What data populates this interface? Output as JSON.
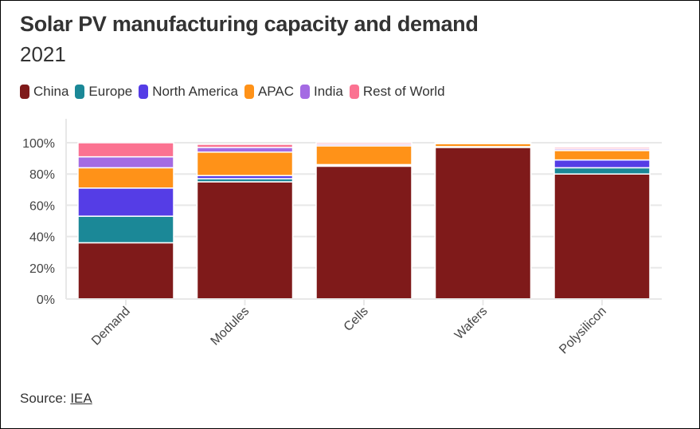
{
  "header": {
    "title": "Solar PV manufacturing capacity and demand",
    "subtitle": "2021"
  },
  "legend": [
    {
      "name": "China",
      "color": "#7f1a1a"
    },
    {
      "name": "Europe",
      "color": "#1b8897"
    },
    {
      "name": "North America",
      "color": "#553de6"
    },
    {
      "name": "APAC",
      "color": "#ff9218"
    },
    {
      "name": "India",
      "color": "#a46be3"
    },
    {
      "name": "Rest of World",
      "color": "#fb7291"
    }
  ],
  "footer": {
    "source_label": "Source:",
    "source_link": "IEA"
  },
  "chart_data": {
    "type": "bar",
    "stacked": true,
    "title": "Solar PV manufacturing capacity and demand",
    "subtitle": "2021",
    "xlabel": "",
    "ylabel": "",
    "categories": [
      "Demand",
      "Modules",
      "Cells",
      "Wafers",
      "Polysilicon"
    ],
    "series": [
      {
        "name": "China",
        "color": "#7f1a1a",
        "values": [
          36,
          75,
          85,
          97,
          80
        ]
      },
      {
        "name": "Europe",
        "color": "#1b8897",
        "values": [
          17,
          2,
          0.5,
          0.3,
          4
        ]
      },
      {
        "name": "North America",
        "color": "#553de6",
        "values": [
          18,
          2,
          0.5,
          0.2,
          5
        ]
      },
      {
        "name": "APAC",
        "color": "#ff9218",
        "values": [
          13,
          15,
          12,
          2,
          6
        ]
      },
      {
        "name": "India",
        "color": "#a46be3",
        "values": [
          7,
          3,
          1,
          0.3,
          1
        ]
      },
      {
        "name": "Rest of World",
        "color": "#fb7291",
        "values": [
          9,
          2,
          1,
          0.2,
          1
        ]
      }
    ],
    "yticks": [
      "0%",
      "20%",
      "40%",
      "60%",
      "80%",
      "100%"
    ],
    "ytick_values": [
      0,
      20,
      40,
      60,
      80,
      100
    ],
    "ylim": [
      0,
      100
    ],
    "grid": true,
    "legend_position": "top-left"
  }
}
